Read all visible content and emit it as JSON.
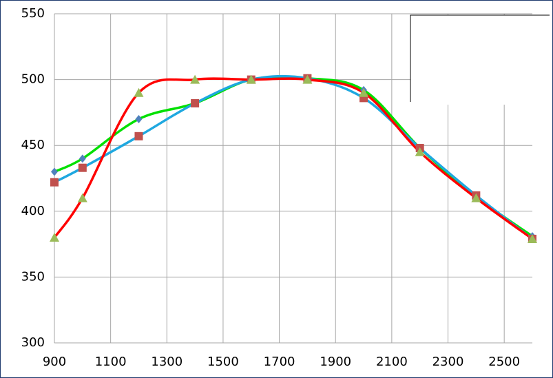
{
  "chart_data": {
    "type": "line",
    "smooth": true,
    "x": [
      900,
      1000,
      1200,
      1400,
      1600,
      1800,
      2000,
      2200,
      2400,
      2600
    ],
    "series": [
      {
        "color": "#00e000",
        "marker_color": "#4f81bd",
        "marker": "diamond",
        "values": [
          430,
          440,
          470,
          482,
          500,
          501,
          492,
          448,
          411,
          381
        ]
      },
      {
        "color": "#1fa8e0",
        "marker_color": "#c0504d",
        "marker": "square",
        "values": [
          422,
          433,
          457,
          482,
          500,
          501,
          486,
          448,
          412,
          379
        ]
      },
      {
        "color": "#ff0000",
        "marker_color": "#9bbb59",
        "marker": "triangle",
        "values": [
          380,
          410,
          490,
          500,
          500,
          500,
          490,
          445,
          410,
          379
        ]
      }
    ],
    "xlim": [
      900,
      2600
    ],
    "xticks": [
      900,
      1100,
      1300,
      1500,
      1700,
      1900,
      2100,
      2300,
      2500
    ],
    "ylim": [
      300,
      550
    ],
    "yticks": [
      300,
      350,
      400,
      450,
      500,
      550
    ],
    "grid": true
  }
}
